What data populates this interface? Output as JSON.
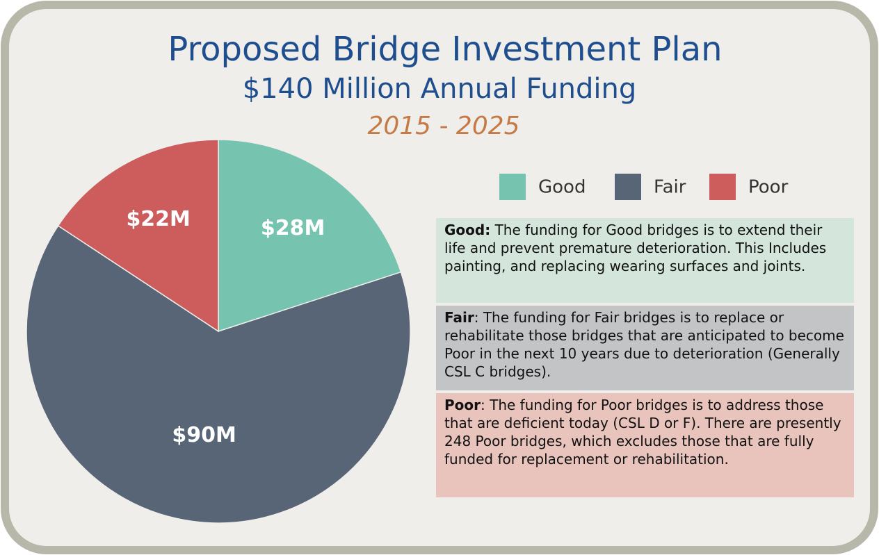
{
  "chart_data": {
    "type": "pie",
    "title": "Proposed Bridge Investment Plan",
    "subtitle": "$140 Million Annual Funding",
    "period": "2015 - 2025",
    "categories": [
      "Good",
      "Fair",
      "Poor"
    ],
    "values": [
      28,
      90,
      22
    ],
    "value_labels": [
      "$28M",
      "$90M",
      "$22M"
    ],
    "colors": [
      "#76c3b0",
      "#586577",
      "#cd5c5c"
    ],
    "legend": "top-right",
    "notes": [
      {
        "term": "Good:",
        "text": " The funding for Good bridges is to extend their life and prevent premature deterioration.  This Includes painting, and replacing wearing surfaces and joints."
      },
      {
        "term": "Fair",
        "text": ": The funding for Fair bridges is to replace or rehabilitate those bridges that are anticipated to become Poor in the next 10 years due to deterioration (Generally CSL C bridges)."
      },
      {
        "term": "Poor",
        "text": ": The funding for Poor bridges is to address those that are deficient today (CSL D or F).  There are presently 248 Poor bridges, which excludes those that are fully funded for replacement or rehabilitation."
      }
    ]
  }
}
